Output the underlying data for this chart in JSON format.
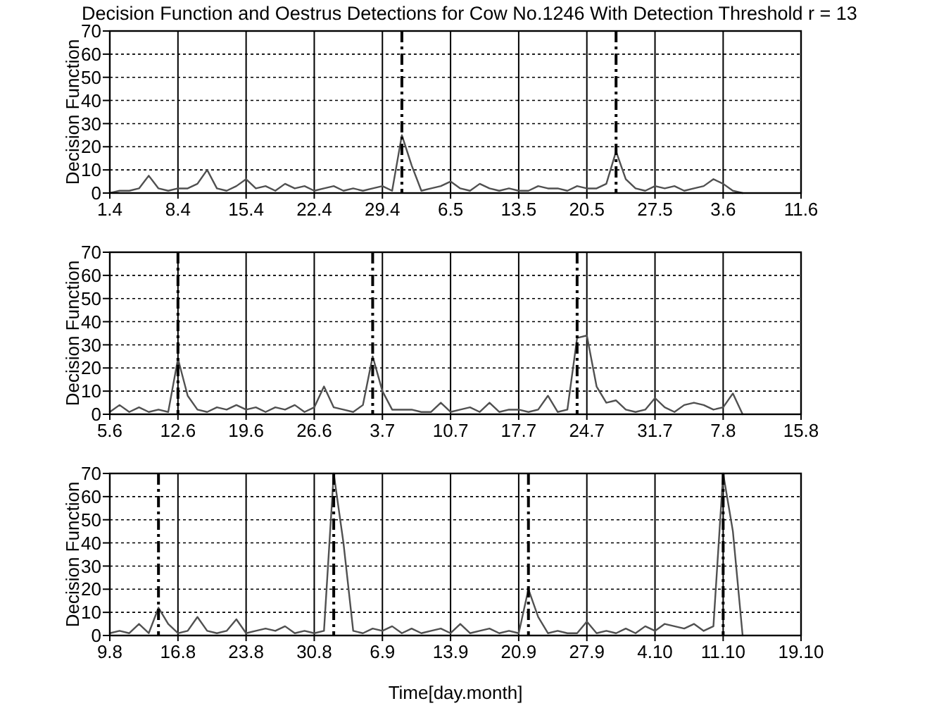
{
  "chart_data": [
    {
      "type": "line",
      "title": "Decision Function and Oestrus Detections for Cow No.1246 With Detection Threshold r = 13",
      "ylabel": "Decision Function",
      "xlim": [
        "--04-01",
        "--06-11"
      ],
      "xticks": [
        {
          "value": "--04-01",
          "label": "1.4"
        },
        {
          "value": "--04-08",
          "label": "8.4"
        },
        {
          "value": "--04-15",
          "label": "15.4"
        },
        {
          "value": "--04-22",
          "label": "22.4"
        },
        {
          "value": "--04-29",
          "label": "29.4"
        },
        {
          "value": "--05-06",
          "label": "6.5"
        },
        {
          "value": "--05-13",
          "label": "13.5"
        },
        {
          "value": "--05-20",
          "label": "20.5"
        },
        {
          "value": "--05-27",
          "label": "27.5"
        },
        {
          "value": "--06-03",
          "label": "3.6"
        },
        {
          "value": "--06-11",
          "label": "11.6"
        }
      ],
      "ylim": [
        0,
        70
      ],
      "yticks": [
        0,
        10,
        20,
        30,
        40,
        50,
        60,
        70
      ],
      "grid": true,
      "ref_lines": [
        {
          "axis": "x",
          "value": "--05-01",
          "color": "#000000",
          "line_style": "dashed"
        },
        {
          "axis": "x",
          "value": "--05-23",
          "color": "#000000",
          "line_style": "dashed"
        }
      ],
      "series": [
        {
          "color": "#505050",
          "x": [
            "--04-01",
            "--04-02",
            "--04-03",
            "--04-04",
            "--04-05",
            "--04-06",
            "--04-07",
            "--04-08",
            "--04-09",
            "--04-10",
            "--04-11",
            "--04-12",
            "--04-13",
            "--04-14",
            "--04-15",
            "--04-16",
            "--04-17",
            "--04-18",
            "--04-19",
            "--04-20",
            "--04-21",
            "--04-22",
            "--04-23",
            "--04-24",
            "--04-25",
            "--04-26",
            "--04-27",
            "--04-28",
            "--04-29",
            "--04-30",
            "--05-01",
            "--05-02",
            "--05-03",
            "--05-04",
            "--05-05",
            "--05-06",
            "--05-07",
            "--05-08",
            "--05-09",
            "--05-10",
            "--05-11",
            "--05-12",
            "--05-13",
            "--05-14",
            "--05-15",
            "--05-16",
            "--05-17",
            "--05-18",
            "--05-19",
            "--05-20",
            "--05-21",
            "--05-22",
            "--05-23",
            "--05-24",
            "--05-25",
            "--05-26",
            "--05-27",
            "--05-28",
            "--05-29",
            "--05-30",
            "--05-31",
            "--06-01",
            "--06-02",
            "--06-03",
            "--06-04",
            "--06-05"
          ],
          "values": [
            0,
            1,
            1,
            2,
            7.5,
            2,
            1,
            2,
            2,
            4,
            10,
            2,
            1,
            3,
            6,
            2,
            3,
            1,
            4,
            2,
            3,
            1,
            2,
            3,
            1,
            2,
            1,
            2,
            3,
            1,
            25,
            12,
            1,
            2,
            3,
            5,
            2,
            1,
            4,
            2,
            1,
            2,
            1,
            1,
            3,
            2,
            2,
            1,
            3,
            2,
            2,
            4,
            18,
            6,
            2,
            1,
            3,
            2,
            3,
            1,
            2,
            3,
            6,
            4,
            1,
            0
          ]
        }
      ]
    },
    {
      "type": "line",
      "ylabel": "Decision Function",
      "xlim": [
        "--06-05",
        "--08-15"
      ],
      "xticks": [
        {
          "value": "--06-05",
          "label": "5.6"
        },
        {
          "value": "--06-12",
          "label": "12.6"
        },
        {
          "value": "--06-19",
          "label": "19.6"
        },
        {
          "value": "--06-26",
          "label": "26.6"
        },
        {
          "value": "--07-03",
          "label": "3.7"
        },
        {
          "value": "--07-10",
          "label": "10.7"
        },
        {
          "value": "--07-17",
          "label": "17.7"
        },
        {
          "value": "--07-24",
          "label": "24.7"
        },
        {
          "value": "--07-31",
          "label": "31.7"
        },
        {
          "value": "--08-07",
          "label": "7.8"
        },
        {
          "value": "--08-15",
          "label": "15.8"
        }
      ],
      "ylim": [
        0,
        70
      ],
      "yticks": [
        0,
        10,
        20,
        30,
        40,
        50,
        60,
        70
      ],
      "grid": true,
      "ref_lines": [
        {
          "axis": "x",
          "value": "--06-12",
          "color": "#000000",
          "line_style": "dashed"
        },
        {
          "axis": "x",
          "value": "--07-02",
          "color": "#000000",
          "line_style": "dashed"
        },
        {
          "axis": "x",
          "value": "--07-23",
          "color": "#000000",
          "line_style": "dashed"
        }
      ],
      "series": [
        {
          "color": "#505050",
          "x": [
            "--06-05",
            "--06-06",
            "--06-07",
            "--06-08",
            "--06-09",
            "--06-10",
            "--06-11",
            "--06-12",
            "--06-13",
            "--06-14",
            "--06-15",
            "--06-16",
            "--06-17",
            "--06-18",
            "--06-19",
            "--06-20",
            "--06-21",
            "--06-22",
            "--06-23",
            "--06-24",
            "--06-25",
            "--06-26",
            "--06-27",
            "--06-28",
            "--06-29",
            "--06-30",
            "--07-01",
            "--07-02",
            "--07-03",
            "--07-04",
            "--07-05",
            "--07-06",
            "--07-07",
            "--07-08",
            "--07-09",
            "--07-10",
            "--07-11",
            "--07-12",
            "--07-13",
            "--07-14",
            "--07-15",
            "--07-16",
            "--07-17",
            "--07-18",
            "--07-19",
            "--07-20",
            "--07-21",
            "--07-22",
            "--07-23",
            "--07-24",
            "--07-25",
            "--07-26",
            "--07-27",
            "--07-28",
            "--07-29",
            "--07-30",
            "--07-31",
            "--08-01",
            "--08-02",
            "--08-03",
            "--08-04",
            "--08-05",
            "--08-06",
            "--08-07",
            "--08-08",
            "--08-09"
          ],
          "values": [
            1,
            4,
            1,
            3,
            1,
            2,
            1,
            24,
            8,
            2,
            1,
            3,
            2,
            4,
            2,
            3,
            1,
            3,
            2,
            4,
            1,
            3,
            12,
            3,
            2,
            1,
            4,
            25,
            10,
            2,
            2,
            2,
            1,
            1,
            5,
            1,
            2,
            3,
            1,
            5,
            1,
            2,
            2,
            1,
            2,
            8,
            1,
            2,
            33,
            34,
            12,
            5,
            6,
            2,
            1,
            2,
            7,
            3,
            1,
            4,
            5,
            4,
            2,
            3,
            9,
            0
          ]
        }
      ]
    },
    {
      "type": "line",
      "ylabel": "Decision Function",
      "xlabel": "Time[day.month]",
      "xlim": [
        "--08-09",
        "--10-19"
      ],
      "xticks": [
        {
          "value": "--08-09",
          "label": "9.8"
        },
        {
          "value": "--08-16",
          "label": "16.8"
        },
        {
          "value": "--08-23",
          "label": "23.8"
        },
        {
          "value": "--08-30",
          "label": "30.8"
        },
        {
          "value": "--09-06",
          "label": "6.9"
        },
        {
          "value": "--09-13",
          "label": "13.9"
        },
        {
          "value": "--09-20",
          "label": "20.9"
        },
        {
          "value": "--09-27",
          "label": "27.9"
        },
        {
          "value": "--10-04",
          "label": "4.10"
        },
        {
          "value": "--10-11",
          "label": "11.10"
        },
        {
          "value": "--10-19",
          "label": "19.10"
        }
      ],
      "ylim": [
        0,
        70
      ],
      "yticks": [
        0,
        10,
        20,
        30,
        40,
        50,
        60,
        70
      ],
      "grid": true,
      "ref_lines": [
        {
          "axis": "x",
          "value": "--08-14",
          "color": "#000000",
          "line_style": "dashed"
        },
        {
          "axis": "x",
          "value": "--09-01",
          "color": "#000000",
          "line_style": "dashed"
        },
        {
          "axis": "x",
          "value": "--09-21",
          "color": "#000000",
          "line_style": "dashed"
        },
        {
          "axis": "x",
          "value": "--10-11",
          "color": "#000000",
          "line_style": "dashed"
        }
      ],
      "series": [
        {
          "color": "#505050",
          "x": [
            "--08-09",
            "--08-10",
            "--08-11",
            "--08-12",
            "--08-13",
            "--08-14",
            "--08-15",
            "--08-16",
            "--08-17",
            "--08-18",
            "--08-19",
            "--08-20",
            "--08-21",
            "--08-22",
            "--08-23",
            "--08-24",
            "--08-25",
            "--08-26",
            "--08-27",
            "--08-28",
            "--08-29",
            "--08-30",
            "--08-31",
            "--09-01",
            "--09-02",
            "--09-03",
            "--09-04",
            "--09-05",
            "--09-06",
            "--09-07",
            "--09-08",
            "--09-09",
            "--09-10",
            "--09-11",
            "--09-12",
            "--09-13",
            "--09-14",
            "--09-15",
            "--09-16",
            "--09-17",
            "--09-18",
            "--09-19",
            "--09-20",
            "--09-21",
            "--09-22",
            "--09-23",
            "--09-24",
            "--09-25",
            "--09-26",
            "--09-27",
            "--09-28",
            "--09-29",
            "--09-30",
            "--10-01",
            "--10-02",
            "--10-03",
            "--10-04",
            "--10-05",
            "--10-06",
            "--10-07",
            "--10-08",
            "--10-09",
            "--10-10",
            "--10-11",
            "--10-12",
            "--10-13"
          ],
          "values": [
            1,
            2,
            1,
            5,
            1,
            12,
            5,
            1,
            2,
            8,
            2,
            1,
            2,
            7,
            1,
            2,
            3,
            2,
            4,
            1,
            2,
            1,
            2,
            70,
            40,
            2,
            1,
            3,
            2,
            4,
            1,
            3,
            1,
            2,
            3,
            1,
            5,
            1,
            2,
            3,
            1,
            2,
            1,
            20,
            8,
            1,
            2,
            1,
            1,
            6,
            1,
            2,
            1,
            3,
            1,
            4,
            2,
            5,
            4,
            3,
            5,
            2,
            4,
            70,
            45,
            0
          ]
        }
      ]
    }
  ]
}
